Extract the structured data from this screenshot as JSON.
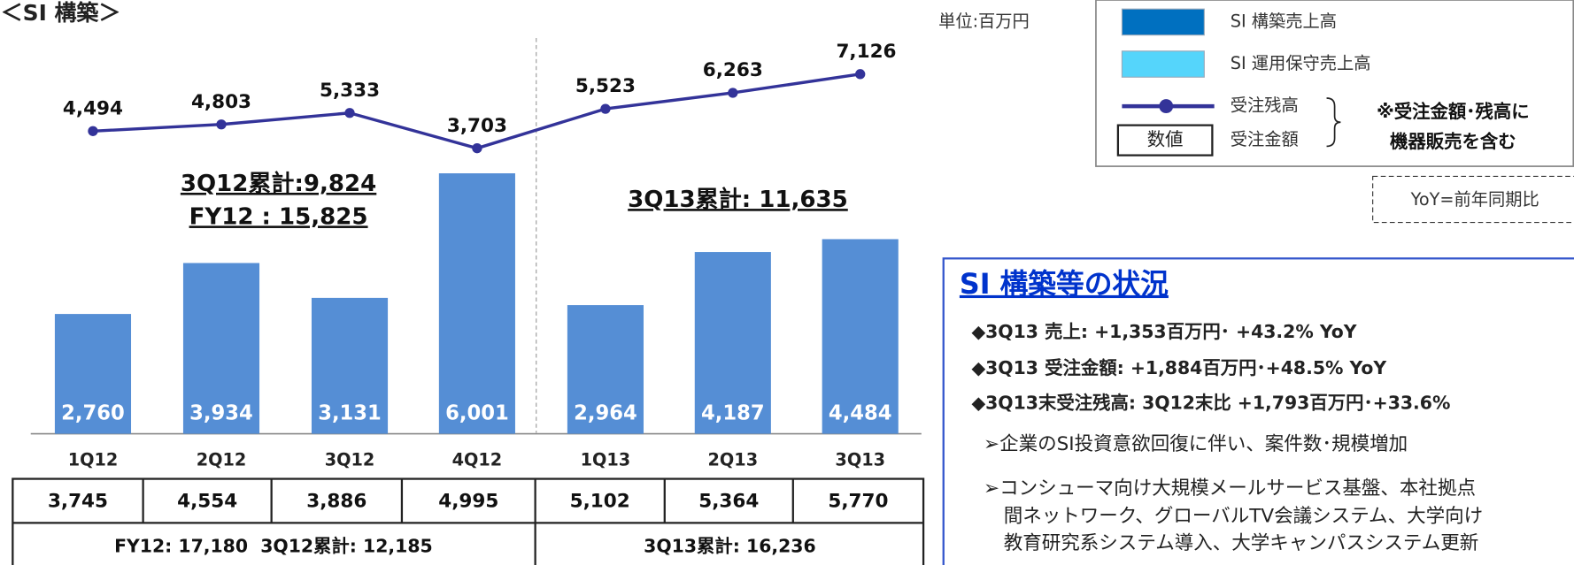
{
  "chart_data": {
    "type": "bar",
    "title": "＜SI 構築＞",
    "unit": "単位:百万円",
    "categories": [
      "1Q12",
      "2Q12",
      "3Q12",
      "4Q12",
      "1Q13",
      "2Q13",
      "3Q13"
    ],
    "series": [
      {
        "type": "bar",
        "color": "#558ed5",
        "values": [
          2760,
          3934,
          3131,
          6001,
          2964,
          4187,
          4484
        ],
        "value_labels": [
          "2,760",
          "3,934",
          "3,131",
          "6,001",
          "2,964",
          "4,187",
          "4,484"
        ]
      },
      {
        "type": "line",
        "color": "#333399",
        "values": [
          4494,
          4803,
          5333,
          3703,
          5523,
          6263,
          7126
        ],
        "value_labels": [
          "4,494",
          "4,803",
          "5,333",
          "3,703",
          "5,523",
          "6,263",
          "7,126"
        ]
      },
      {
        "type": "table",
        "values": [
          3745,
          4554,
          3886,
          4995,
          5102,
          5364,
          5770
        ],
        "value_labels": [
          "3,745",
          "4,554",
          "3,886",
          "4,995",
          "5,102",
          "5,364",
          "5,770"
        ]
      }
    ],
    "annotations": [
      "3Q12累計:9,824",
      "FY12 : 15,825",
      "3Q13累計: 11,635"
    ],
    "totals": [
      "FY12: 17,180  3Q12累計: 12,185",
      "3Q13累計: 16,236"
    ],
    "legend": [
      {
        "name": "SI 構築売上高",
        "color": "#0070c0"
      },
      {
        "name": "SI 運用保守売上高",
        "color": "#55d5fb"
      },
      {
        "name": "受注残高",
        "color": "#333399"
      },
      {
        "name": "受注金額",
        "sample": "数値"
      }
    ],
    "legend_note": [
      "※受注金額･残高に",
      "機器販売を含む"
    ],
    "yoy_note": "YoY=前年同期比"
  },
  "panel": {
    "title": "SI 構築等の状況",
    "lines": [
      "◆3Q13 売上: +1,353百万円･ +43.2% YoY",
      "◆3Q13 受注金額: +1,884百万円･+48.5% YoY",
      "◆3Q13末受注残高: 3Q12末比 +1,793百万円･+33.6%",
      "➢企業のSI投資意欲回復に伴い、案件数･規模増加",
      "➢コンシューマ向け大規模メールサービス基盤、本社拠点",
      "間ネットワーク、グローバルTV会議システム、大学向け",
      "教育研究系システム導入、大学キャンパスシステム更新"
    ]
  }
}
